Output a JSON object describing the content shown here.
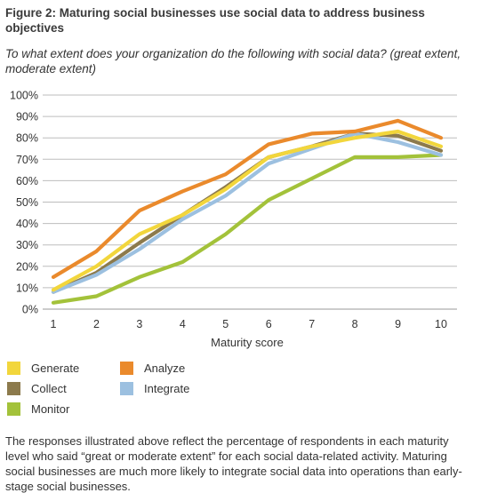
{
  "figure": {
    "title": "Figure 2: Maturing social businesses use social data to address business objectives",
    "subtitle": "To what extent does your organization do the following with social data? (great extent, moderate extent)",
    "footnote": "The responses illustrated above reflect the percentage of respondents in each maturity level who said “great or moderate extent” for each social data-related activity. Maturing social businesses are much more likely to integrate social data into operations than early-stage social businesses."
  },
  "legend": {
    "generate": "Generate",
    "analyze": "Analyze",
    "collect": "Collect",
    "integrate": "Integrate",
    "monitor": "Monitor"
  },
  "chart_data": {
    "type": "line",
    "x": [
      1,
      2,
      3,
      4,
      5,
      6,
      7,
      8,
      9,
      10
    ],
    "xlabel": "Maturity score",
    "ylabel": "",
    "ylim": [
      0,
      100
    ],
    "yticks": [
      "0%",
      "10%",
      "20%",
      "30%",
      "40%",
      "50%",
      "60%",
      "70%",
      "80%",
      "90%",
      "100%"
    ],
    "xticks": [
      "1",
      "2",
      "3",
      "4",
      "5",
      "6",
      "7",
      "8",
      "9",
      "10"
    ],
    "grid": "horizontal",
    "legend_position": "bottom-left",
    "series": [
      {
        "name": "Monitor",
        "color": "#a3c23a",
        "values": [
          3,
          6,
          15,
          22,
          35,
          51,
          61,
          71,
          71,
          72
        ]
      },
      {
        "name": "Collect",
        "color": "#8c7a4c",
        "values": [
          8,
          17,
          31,
          44,
          57,
          71,
          76,
          82,
          81,
          74
        ]
      },
      {
        "name": "Integrate",
        "color": "#9cc0e0",
        "values": [
          8,
          16,
          28,
          42,
          53,
          68,
          75,
          82,
          78,
          72
        ]
      },
      {
        "name": "Generate",
        "color": "#f2d63c",
        "values": [
          9,
          20,
          35,
          44,
          56,
          71,
          76,
          80,
          83,
          76
        ]
      },
      {
        "name": "Analyze",
        "color": "#ea8a2c",
        "values": [
          15,
          27,
          46,
          55,
          63,
          77,
          82,
          83,
          88,
          80
        ]
      }
    ]
  }
}
